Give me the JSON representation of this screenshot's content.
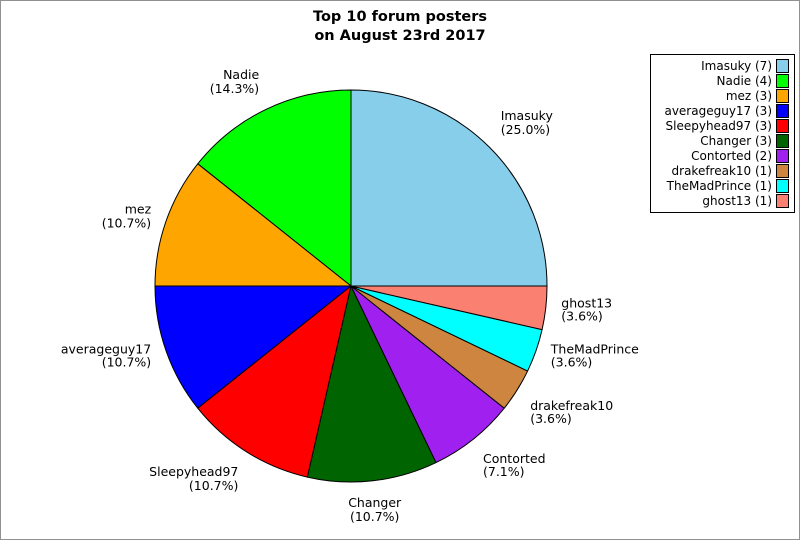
{
  "title": {
    "line1": "Top 10 forum posters",
    "line2": "on August 23rd 2017"
  },
  "chart_data": {
    "type": "pie",
    "title": "Top 10 forum posters on August 23rd 2017",
    "start_angle_deg": 0,
    "direction": "counterclockwise",
    "legend_position": "upper right",
    "slices": [
      {
        "name": "Imasuky",
        "count": 7,
        "percent": 25.0,
        "percent_label": "(25.0%)",
        "color": "#87CEEB"
      },
      {
        "name": "Nadie",
        "count": 4,
        "percent": 14.3,
        "percent_label": "(14.3%)",
        "color": "#00FF00"
      },
      {
        "name": "mez",
        "count": 3,
        "percent": 10.7,
        "percent_label": "(10.7%)",
        "color": "#FFA500"
      },
      {
        "name": "averageguy17",
        "count": 3,
        "percent": 10.7,
        "percent_label": "(10.7%)",
        "color": "#0000FF"
      },
      {
        "name": "Sleepyhead97",
        "count": 3,
        "percent": 10.7,
        "percent_label": "(10.7%)",
        "color": "#FF0000"
      },
      {
        "name": "Changer",
        "count": 3,
        "percent": 10.7,
        "percent_label": "(10.7%)",
        "color": "#006400"
      },
      {
        "name": "Contorted",
        "count": 2,
        "percent": 7.1,
        "percent_label": "(7.1%)",
        "color": "#A020F0"
      },
      {
        "name": "drakefreak10",
        "count": 1,
        "percent": 3.6,
        "percent_label": "(3.6%)",
        "color": "#CD853F"
      },
      {
        "name": "TheMadPrince",
        "count": 1,
        "percent": 3.6,
        "percent_label": "(3.6%)",
        "color": "#00FFFF"
      },
      {
        "name": "ghost13",
        "count": 1,
        "percent": 3.6,
        "percent_label": "(3.6%)",
        "color": "#FA8072"
      }
    ]
  }
}
